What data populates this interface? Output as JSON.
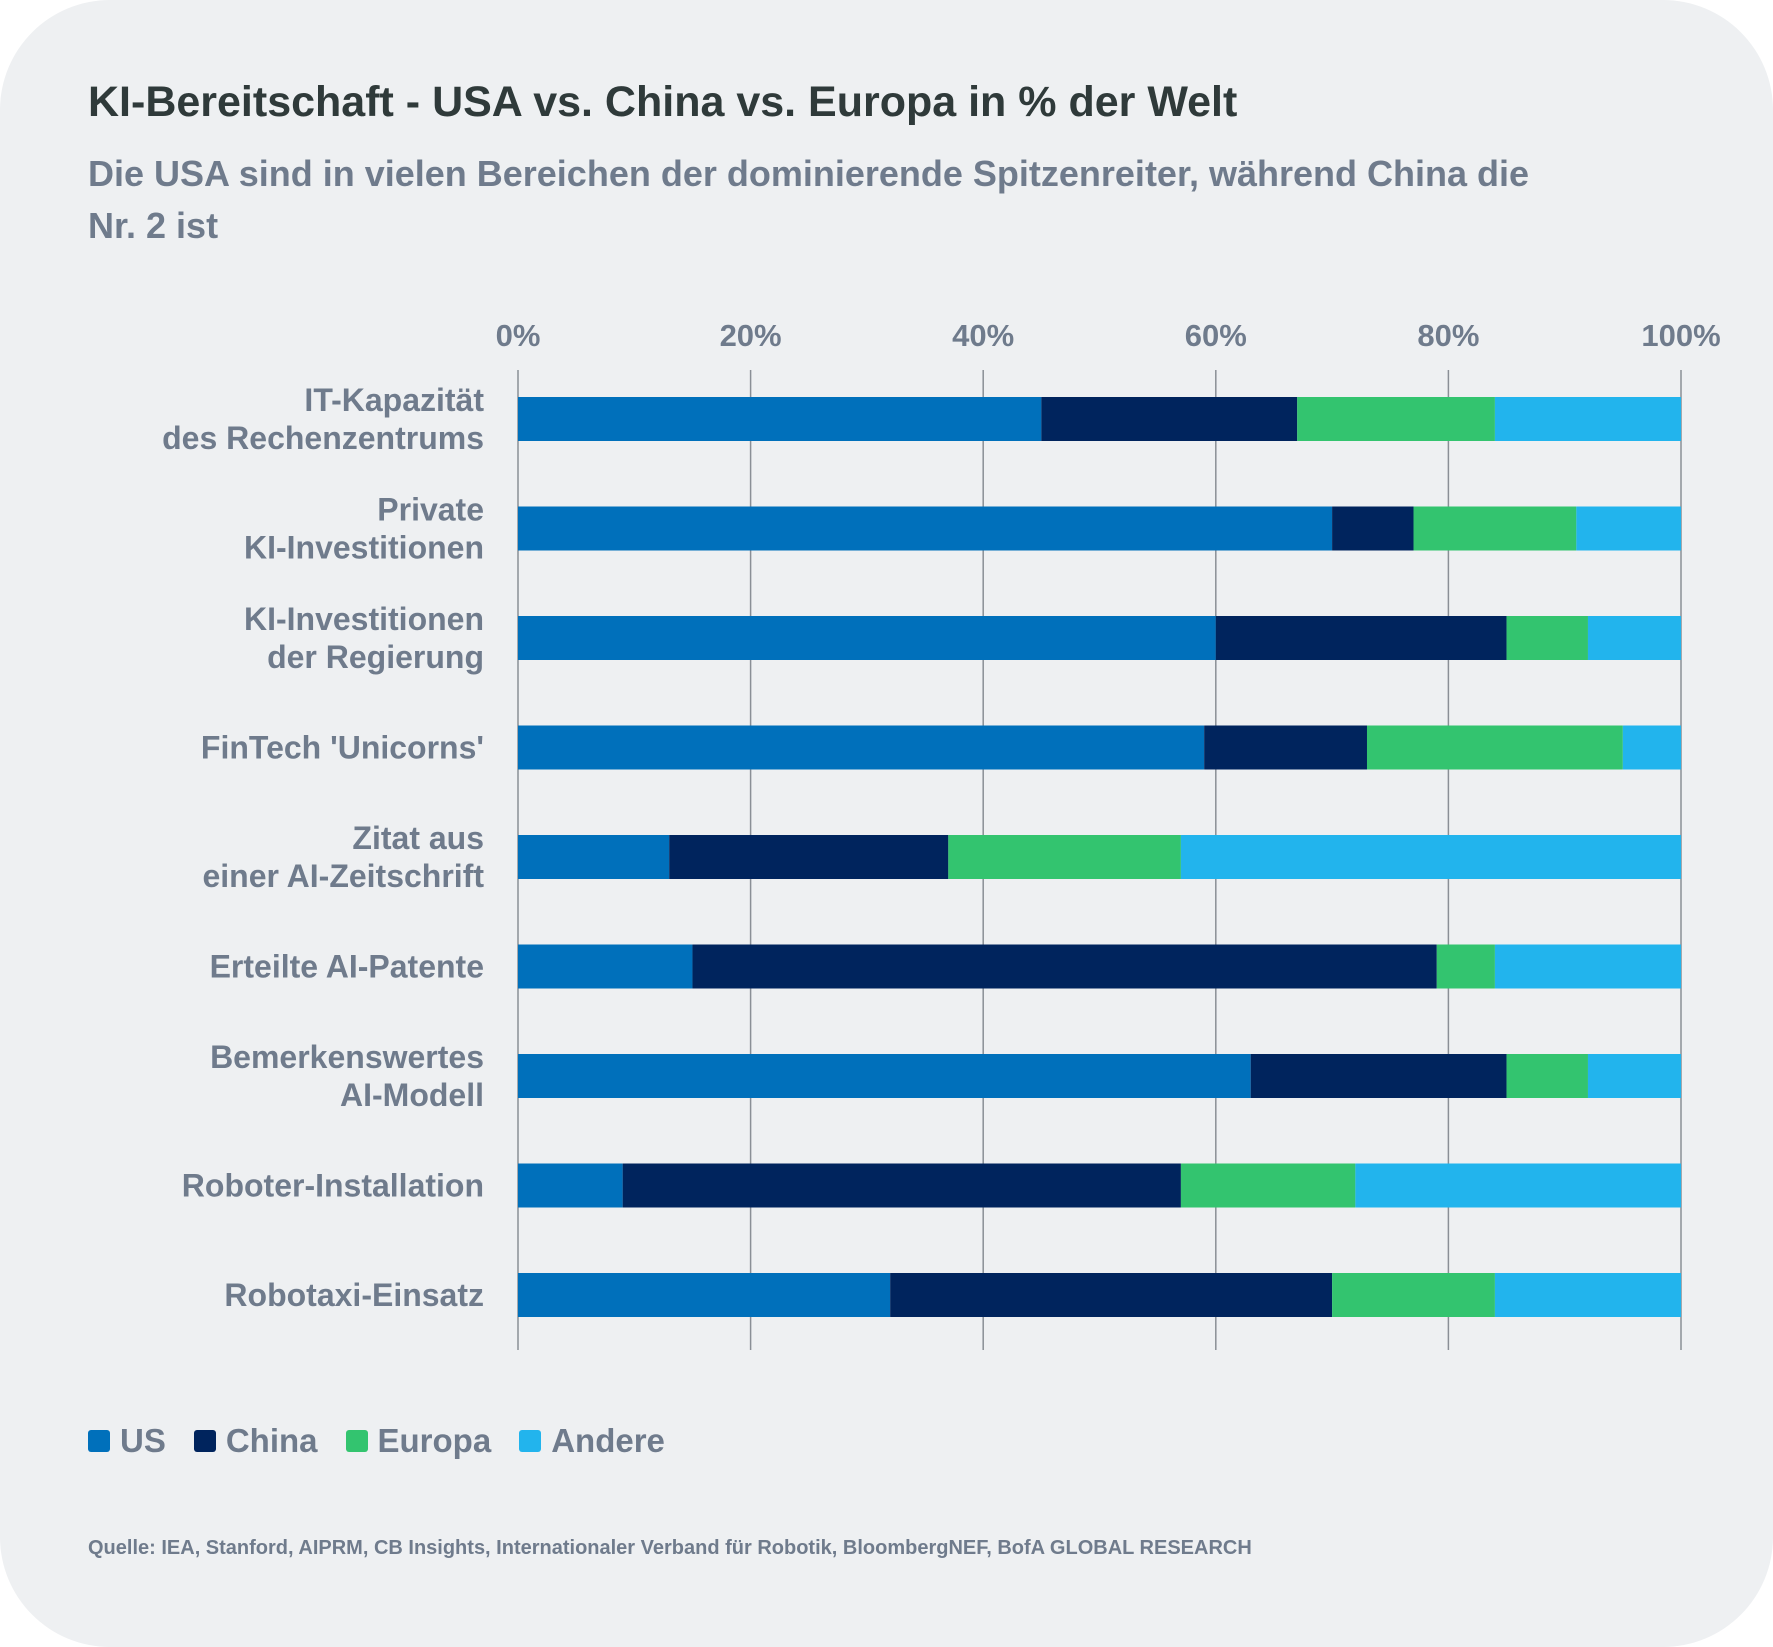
{
  "chart_data": {
    "type": "bar",
    "orientation": "horizontal",
    "stacked": true,
    "title": "KI-Bereitschaft - USA vs. China vs. Europa in % der Welt",
    "subtitle": "Die USA sind in vielen Bereichen der dominierende Spitzenreiter, während China die Nr. 2 ist",
    "xlim": [
      0,
      100
    ],
    "x_ticks": [
      "0%",
      "20%",
      "40%",
      "60%",
      "80%",
      "100%"
    ],
    "x_tick_values": [
      0,
      20,
      40,
      60,
      80,
      100
    ],
    "grid": true,
    "legend_position": "bottom-left",
    "categories": [
      [
        "IT-Kapazität",
        "des Rechenzentrums"
      ],
      [
        "Private",
        "KI-Investitionen"
      ],
      [
        "KI-Investitionen",
        "der Regierung"
      ],
      [
        "FinTech 'Unicorns'"
      ],
      [
        "Zitat aus",
        "einer AI-Zeitschrift"
      ],
      [
        "Erteilte AI-Patente"
      ],
      [
        "Bemerkenswertes",
        "AI-Modell"
      ],
      [
        "Roboter-Installation"
      ],
      [
        "Robotaxi-Einsatz"
      ]
    ],
    "series": [
      {
        "name": "US",
        "color": "#0070bb",
        "values": [
          45,
          70,
          60,
          59,
          13,
          15,
          63,
          9,
          32
        ]
      },
      {
        "name": "China",
        "color": "#00245d",
        "values": [
          22,
          7,
          25,
          14,
          24,
          64,
          22,
          48,
          38
        ]
      },
      {
        "name": "Europa",
        "color": "#33c46f",
        "values": [
          17,
          14,
          7,
          22,
          20,
          5,
          7,
          15,
          14
        ]
      },
      {
        "name": "Andere",
        "color": "#22b4ed",
        "values": [
          16,
          9,
          8,
          5,
          43,
          16,
          8,
          28,
          16
        ]
      }
    ],
    "source": "Quelle: IEA, Stanford, AIPRM, CB Insights, Internationaler Verband für Robotik, BloombergNEF, BofA GLOBAL RESEARCH"
  },
  "colors": {
    "background": "#eef0f2",
    "title": "#2f3a3a",
    "muted_text": "#6f7b8c",
    "gridline": "#8a8f96"
  }
}
